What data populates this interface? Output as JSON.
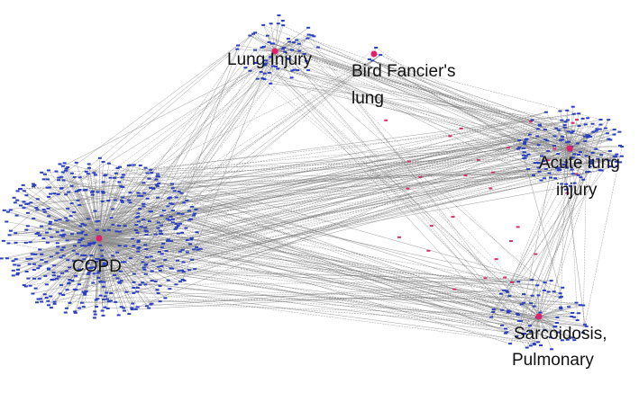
{
  "nodes": [
    {
      "lines": [
        "Lung Injury"
      ]
    },
    {
      "lines": [
        "Bird Fancier's",
        "lung"
      ]
    },
    {
      "lines": [
        "Acute lung",
        "injury"
      ]
    },
    {
      "lines": [
        "COPD"
      ]
    },
    {
      "lines": [
        "Sarcoidosis,",
        "Pulmonary"
      ]
    }
  ]
}
